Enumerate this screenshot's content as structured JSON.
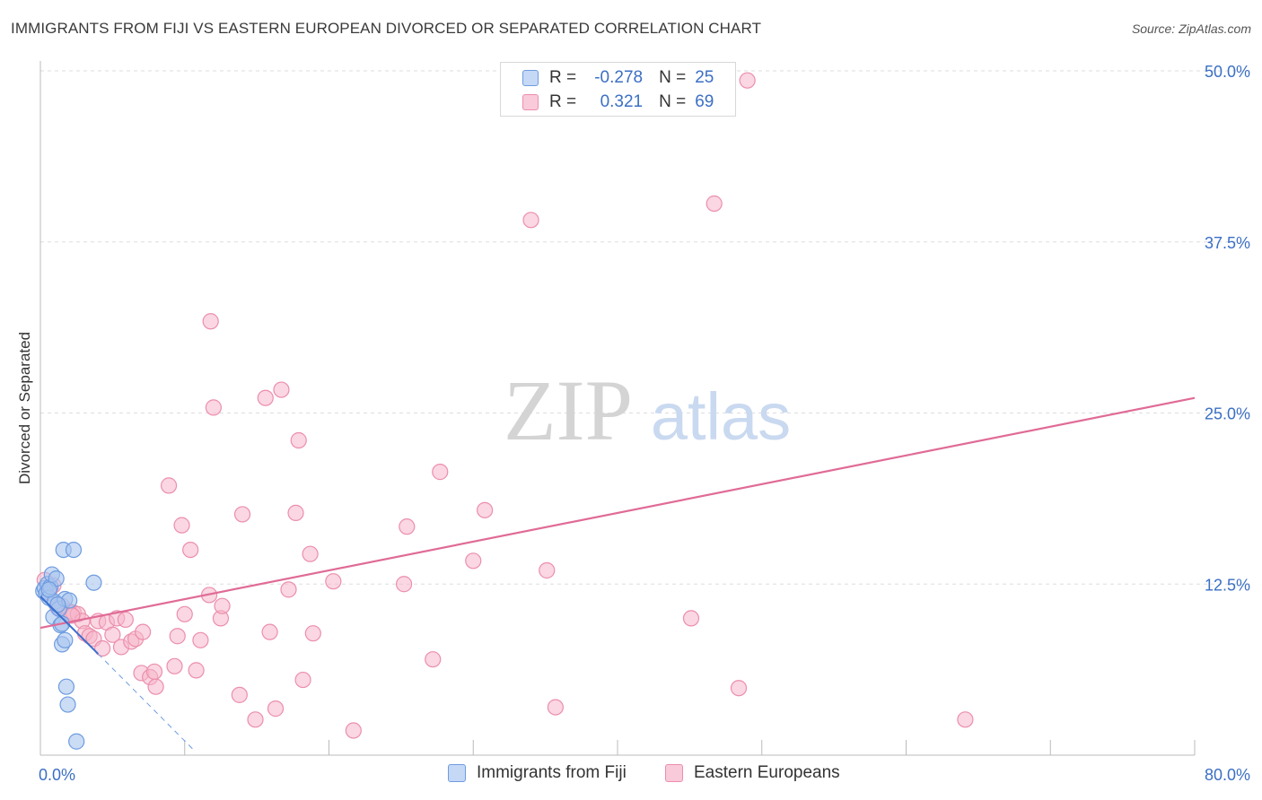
{
  "title": "IMMIGRANTS FROM FIJI VS EASTERN EUROPEAN DIVORCED OR SEPARATED CORRELATION CHART",
  "source": "Source: ZipAtlas.com",
  "watermark": {
    "zip": "ZIP",
    "atlas": "atlas"
  },
  "legend": {
    "r_label": "R =",
    "n_label": "N =",
    "fiji": {
      "r": "-0.278",
      "n": "25"
    },
    "eastern": {
      "r": "0.321",
      "n": "69"
    }
  },
  "bottom_legend": {
    "fiji": "Immigrants from Fiji",
    "eastern": "Eastern Europeans"
  },
  "colors": {
    "fiji_fill": "#a9c4ef",
    "fiji_stroke": "#6e9ce0",
    "fiji_line": "#3a6fd0",
    "eastern_fill": "#f6b7cb",
    "eastern_stroke": "#ec8eac",
    "eastern_line": "#e06b96",
    "axis_label": "#3b6fc4",
    "grid": "#dddddd"
  },
  "chart_data": {
    "type": "scatter",
    "title": "IMMIGRANTS FROM FIJI VS EASTERN EUROPEAN DIVORCED OR SEPARATED CORRELATION CHART",
    "xlabel": "",
    "ylabel": "Divorced or Separated",
    "xlim": [
      0,
      80
    ],
    "ylim": [
      0,
      50
    ],
    "x_tick_labels": [
      {
        "value": 0,
        "label": "0.0%"
      },
      {
        "value": 80,
        "label": "80.0%"
      }
    ],
    "y_tick_labels": [
      {
        "value": 12.5,
        "label": "12.5%"
      },
      {
        "value": 25,
        "label": "25.0%"
      },
      {
        "value": 37.5,
        "label": "37.5%"
      },
      {
        "value": 50,
        "label": "50.0%"
      }
    ],
    "series": [
      {
        "name": "Immigrants from Fiji",
        "r": -0.278,
        "n": 25,
        "points": [
          [
            0.2,
            12.0
          ],
          [
            0.3,
            12.2
          ],
          [
            0.4,
            11.8
          ],
          [
            0.5,
            12.5
          ],
          [
            0.6,
            11.5
          ],
          [
            0.7,
            12.3
          ],
          [
            0.8,
            13.2
          ],
          [
            0.9,
            10.1
          ],
          [
            1.0,
            11.2
          ],
          [
            1.1,
            12.9
          ],
          [
            1.3,
            10.7
          ],
          [
            1.4,
            9.5
          ],
          [
            1.5,
            9.6
          ],
          [
            1.5,
            8.1
          ],
          [
            1.6,
            15.0
          ],
          [
            1.7,
            11.4
          ],
          [
            1.7,
            8.4
          ],
          [
            1.8,
            5.0
          ],
          [
            1.9,
            3.7
          ],
          [
            2.0,
            11.3
          ],
          [
            2.3,
            15.0
          ],
          [
            2.5,
            1.0
          ],
          [
            3.7,
            12.6
          ],
          [
            0.6,
            12.1
          ],
          [
            1.2,
            11.0
          ]
        ],
        "trend_solid": [
          [
            0.0,
            11.6
          ],
          [
            4.0,
            7.4
          ]
        ],
        "trend_dashed": [
          [
            4.0,
            7.4
          ],
          [
            10.7,
            0.3
          ]
        ]
      },
      {
        "name": "Eastern Europeans",
        "r": 0.321,
        "n": 69,
        "points": [
          [
            0.3,
            12.8
          ],
          [
            0.6,
            11.9
          ],
          [
            0.9,
            12.4
          ],
          [
            1.2,
            10.8
          ],
          [
            1.5,
            10.9
          ],
          [
            2.0,
            10.5
          ],
          [
            2.3,
            10.4
          ],
          [
            2.6,
            10.3
          ],
          [
            2.9,
            9.8
          ],
          [
            3.1,
            8.9
          ],
          [
            3.4,
            8.7
          ],
          [
            3.7,
            8.5
          ],
          [
            4.0,
            9.8
          ],
          [
            4.3,
            7.8
          ],
          [
            4.6,
            9.7
          ],
          [
            5.0,
            8.8
          ],
          [
            5.3,
            10.0
          ],
          [
            5.6,
            7.9
          ],
          [
            5.9,
            9.9
          ],
          [
            6.3,
            8.3
          ],
          [
            6.6,
            8.5
          ],
          [
            7.0,
            6.0
          ],
          [
            7.1,
            9.0
          ],
          [
            7.6,
            5.7
          ],
          [
            7.9,
            6.1
          ],
          [
            8.0,
            5.0
          ],
          [
            8.9,
            19.7
          ],
          [
            9.3,
            6.5
          ],
          [
            9.5,
            8.7
          ],
          [
            9.8,
            16.8
          ],
          [
            10.0,
            10.3
          ],
          [
            10.4,
            15.0
          ],
          [
            10.8,
            6.2
          ],
          [
            11.1,
            8.4
          ],
          [
            11.7,
            11.7
          ],
          [
            11.8,
            31.7
          ],
          [
            12.0,
            25.4
          ],
          [
            12.5,
            10.0
          ],
          [
            12.6,
            10.9
          ],
          [
            13.8,
            4.4
          ],
          [
            14.0,
            17.6
          ],
          [
            14.9,
            2.6
          ],
          [
            15.6,
            26.1
          ],
          [
            15.9,
            9.0
          ],
          [
            16.3,
            3.4
          ],
          [
            16.7,
            26.7
          ],
          [
            17.2,
            12.1
          ],
          [
            17.7,
            17.7
          ],
          [
            17.9,
            23.0
          ],
          [
            18.2,
            5.5
          ],
          [
            18.7,
            14.7
          ],
          [
            18.9,
            8.9
          ],
          [
            20.3,
            12.7
          ],
          [
            21.7,
            1.8
          ],
          [
            25.2,
            12.5
          ],
          [
            25.4,
            16.7
          ],
          [
            27.2,
            7.0
          ],
          [
            27.7,
            20.7
          ],
          [
            30.0,
            14.2
          ],
          [
            30.8,
            17.9
          ],
          [
            34.0,
            39.1
          ],
          [
            35.1,
            13.5
          ],
          [
            35.7,
            3.5
          ],
          [
            45.1,
            10.0
          ],
          [
            46.7,
            40.3
          ],
          [
            48.4,
            4.9
          ],
          [
            49.0,
            49.3
          ],
          [
            64.1,
            2.6
          ],
          [
            2.2,
            10.2
          ]
        ],
        "trend": [
          [
            0.0,
            9.3
          ],
          [
            80.0,
            26.1
          ]
        ]
      }
    ]
  }
}
